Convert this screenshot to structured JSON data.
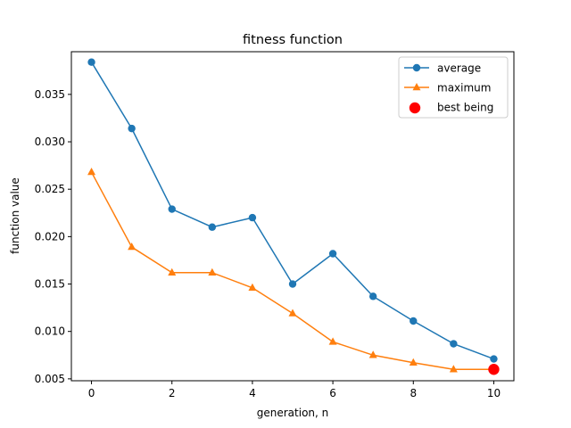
{
  "chart_data": {
    "type": "line",
    "title": "fitness function",
    "xlabel": "generation, n",
    "ylabel": "function value",
    "xlim": [
      -0.5,
      10.5
    ],
    "ylim": [
      0.0048,
      0.0395
    ],
    "xticks": [
      0,
      2,
      4,
      6,
      8,
      10
    ],
    "xtick_labels": [
      "0",
      "2",
      "4",
      "6",
      "8",
      "10"
    ],
    "yticks": [
      0.005,
      0.01,
      0.015,
      0.02,
      0.025,
      0.03,
      0.035
    ],
    "ytick_labels": [
      "0.005",
      "0.010",
      "0.015",
      "0.020",
      "0.025",
      "0.030",
      "0.035"
    ],
    "grid": false,
    "legend_position": "top-right",
    "x": [
      0,
      1,
      2,
      3,
      4,
      5,
      6,
      7,
      8,
      9,
      10
    ],
    "series": [
      {
        "name": "average",
        "color": "#1f77b4",
        "marker": "circle",
        "values": [
          0.0384,
          0.0314,
          0.0229,
          0.021,
          0.022,
          0.015,
          0.0182,
          0.0137,
          0.0111,
          0.0087,
          0.0071
        ]
      },
      {
        "name": "maximum",
        "color": "#ff7f0e",
        "marker": "triangle",
        "values": [
          0.0268,
          0.0189,
          0.0162,
          0.0162,
          0.0146,
          0.0119,
          0.0089,
          0.0075,
          0.0067,
          0.006,
          0.006
        ]
      }
    ],
    "highlight": {
      "name": "best being",
      "color": "#ff0000",
      "marker": "circle",
      "x": 10,
      "y": 0.006
    }
  }
}
